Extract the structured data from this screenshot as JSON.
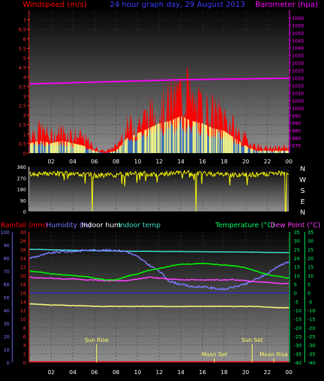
{
  "header": {
    "left_label": "Windspeed (m/s)",
    "title": "24 hour graph day, 29 August 2013",
    "right_label": "Barometer (hpa)"
  },
  "colors": {
    "wind": "#ff0000",
    "wind_avg": "#3d6fb8",
    "wind_gust_fill": "#ffff80",
    "barometer": "#ff00ff",
    "direction": "#ffff00",
    "rain": "#ff0000",
    "humidity": "#7a7aff",
    "indoor_hum": "#ffff80",
    "indoor_temp": "#40e0d0",
    "temperature": "#00ff00",
    "dew_point": "#ff40ff",
    "axis_blue": "#3d3dff",
    "axis_green": "#00ff66"
  },
  "x_ticks": [
    "02",
    "04",
    "06",
    "08",
    "10",
    "12",
    "14",
    "16",
    "18",
    "20",
    "22",
    "00"
  ],
  "chart_data": [
    {
      "type": "line",
      "name": "wind-barometer",
      "left_axis": {
        "label": "Windspeed (m/s)",
        "ylim": [
          0,
          7.5
        ],
        "ticks": [
          "0",
          "0.5",
          "1",
          "1.5",
          "2",
          "2.5",
          "3",
          "3.5",
          "4",
          "4.5",
          "5",
          "5.5",
          "6",
          "6.5",
          "7"
        ]
      },
      "right_axis": {
        "label": "Barometer (hpa)",
        "ylim": [
          970,
          1065
        ],
        "ticks": [
          "975",
          "980",
          "985",
          "990",
          "995",
          "1000",
          "1005",
          "1010",
          "1015",
          "1020",
          "1025",
          "1030",
          "1035",
          "1040",
          "1045",
          "1050",
          "1055",
          "1060"
        ]
      },
      "x_hours": [
        0,
        1,
        2,
        3,
        4,
        5,
        6,
        7,
        8,
        9,
        10,
        11,
        12,
        13,
        14,
        15,
        16,
        17,
        18,
        19,
        20,
        21,
        22,
        23,
        24
      ],
      "series": [
        {
          "key": "gust",
          "values": [
            1.2,
            1.4,
            1.0,
            1.3,
            1.1,
            0.9,
            0.3,
            0.1,
            0.4,
            1.5,
            1.8,
            2.2,
            2.6,
            3.0,
            3.6,
            3.0,
            2.6,
            2.4,
            2.2,
            1.4,
            0.8,
            0.4,
            0.3,
            0.3,
            0.4
          ]
        },
        {
          "key": "avg",
          "values": [
            0.4,
            0.5,
            0.4,
            0.5,
            0.4,
            0.3,
            0.1,
            0.0,
            0.1,
            0.6,
            0.8,
            1.0,
            1.2,
            1.3,
            1.5,
            1.3,
            1.2,
            1.0,
            0.9,
            0.6,
            0.3,
            0.1,
            0.1,
            0.1,
            0.1
          ]
        },
        {
          "key": "pressure",
          "values": [
            1016.0,
            1016.2,
            1016.4,
            1016.6,
            1016.8,
            1017.0,
            1017.2,
            1017.4,
            1017.6,
            1017.8,
            1018.0,
            1018.2,
            1018.4,
            1018.6,
            1018.8,
            1018.9,
            1019.0,
            1019.1,
            1019.2,
            1019.3,
            1019.4,
            1019.5,
            1019.6,
            1019.7,
            1019.8
          ]
        }
      ],
      "peak_gust": {
        "hour": 14.6,
        "value": 4.5
      }
    },
    {
      "type": "line",
      "name": "wind-direction",
      "left_axis": {
        "ylim": [
          0,
          360
        ],
        "ticks": [
          "0",
          "90",
          "180",
          "270",
          "360"
        ]
      },
      "right_labels": [
        "N",
        "W",
        "S",
        "E",
        "N"
      ],
      "x_hours": [
        0,
        2,
        4,
        6,
        8,
        10,
        12,
        14,
        16,
        18,
        20,
        22,
        24
      ],
      "values": [
        300,
        305,
        310,
        290,
        295,
        305,
        300,
        310,
        305,
        300,
        295,
        300,
        310
      ],
      "dips": [
        {
          "hour": 5.8,
          "value": 0
        },
        {
          "hour": 15.4,
          "value": 0
        },
        {
          "hour": 23.7,
          "value": 0
        }
      ]
    },
    {
      "type": "line",
      "name": "temperature-humidity",
      "labels": {
        "rain": "Rainfall (mm)",
        "humidity": "Humidity (%)",
        "indoor_hum": "Indoor hum",
        "indoor_temp": "Indoor temp",
        "temperature": "Temperature (°C)",
        "dew_point": "Dew Point (°C)"
      },
      "axis_humidity": {
        "ylim": [
          0,
          100
        ],
        "ticks": [
          "0",
          "10",
          "20",
          "30",
          "40",
          "50",
          "60",
          "70",
          "80",
          "90",
          "100"
        ]
      },
      "axis_rain": {
        "ylim": [
          0,
          30
        ],
        "ticks": [
          "0",
          "2",
          "4",
          "6",
          "8",
          "10",
          "12",
          "14",
          "16",
          "18",
          "20",
          "22",
          "24",
          "26",
          "28",
          "30"
        ]
      },
      "axis_temp_in": {
        "ylim": [
          -40,
          35
        ],
        "ticks": [
          "-40",
          "-35",
          "-30",
          "-25",
          "-20",
          "-15",
          "-10",
          "-5",
          "0",
          "5",
          "10",
          "15",
          "20",
          "25",
          "30",
          "35"
        ]
      },
      "axis_temp_out": {
        "ylim": [
          -40,
          35
        ],
        "ticks": [
          "-40",
          "-35",
          "-30",
          "-25",
          "-20",
          "-15",
          "-10",
          "-5",
          "0",
          "5",
          "10",
          "15",
          "20",
          "25",
          "30",
          "35"
        ]
      },
      "x_hours": [
        0,
        1,
        2,
        3,
        4,
        5,
        6,
        7,
        8,
        9,
        10,
        11,
        12,
        13,
        14,
        15,
        16,
        17,
        18,
        19,
        20,
        21,
        22,
        23,
        24
      ],
      "series": [
        {
          "key": "humidity",
          "values": [
            80,
            82,
            84,
            85,
            85,
            86,
            86,
            86,
            86,
            85,
            81,
            75,
            70,
            62,
            60,
            58,
            58,
            57,
            56,
            58,
            60,
            64,
            68,
            74,
            77
          ]
        },
        {
          "key": "indoor_temp",
          "values": [
            25,
            25,
            24.8,
            24.6,
            24.5,
            24.4,
            24.3,
            24.2,
            24.1,
            24.0,
            23.9,
            23.9,
            23.8,
            23.8,
            23.8,
            23.7,
            23.7,
            23.6,
            23.6,
            23.5,
            23.5,
            23.4,
            23.3,
            23.2,
            23.2
          ]
        },
        {
          "key": "temperature",
          "values": [
            12.5,
            12,
            11,
            10.5,
            10,
            9.5,
            8.5,
            7.5,
            7.5,
            9.5,
            11,
            13,
            14,
            15.5,
            16.5,
            16.5,
            17,
            16.5,
            16,
            15.5,
            14.5,
            12.5,
            10.5,
            9.5,
            8.5
          ]
        },
        {
          "key": "dew_point",
          "values": [
            9,
            8.5,
            8.5,
            8,
            8,
            7.5,
            7.5,
            7,
            7,
            7,
            8,
            9,
            8.5,
            8,
            7.5,
            7.5,
            7.5,
            7.5,
            7.5,
            7.5,
            7,
            6.5,
            6,
            5.5,
            5.5
          ]
        },
        {
          "key": "indoor_hum",
          "values": [
            45,
            44.5,
            44,
            44,
            43.5,
            43.5,
            43,
            43,
            43,
            43,
            43,
            43,
            43,
            43,
            43,
            43,
            43,
            43,
            43,
            43,
            43,
            43,
            42.5,
            42,
            42
          ]
        },
        {
          "key": "rain",
          "values": [
            0,
            0,
            0,
            0,
            0,
            0,
            0,
            0,
            0,
            0,
            0,
            0,
            0,
            0,
            0,
            0,
            0,
            0,
            0,
            0,
            0,
            0,
            0,
            0,
            0
          ]
        }
      ],
      "events": [
        {
          "label": "Sun Rise",
          "hour": 6.2,
          "row": 0
        },
        {
          "label": "Moon Set",
          "hour": 17.1,
          "row": 1
        },
        {
          "label": "Sun Set",
          "hour": 20.6,
          "row": 0
        },
        {
          "label": "Moon Rise",
          "hour": 22.6,
          "row": 1
        }
      ]
    }
  ]
}
